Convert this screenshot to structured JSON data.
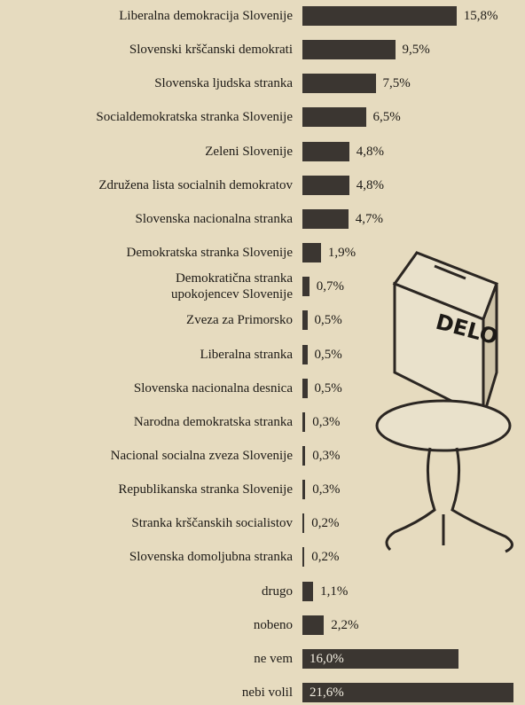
{
  "chart_data": {
    "type": "bar",
    "orientation": "horizontal",
    "annotation": "DELO",
    "color": "#3b3631",
    "categories": [
      "Liberalna demokracija Slovenije",
      "Slovenski krščanski demokrati",
      "Slovenska ljudska stranka",
      "Socialdemokratska stranka Slovenije",
      "Zeleni Slovenije",
      "Združena lista socialnih demokratov",
      "Slovenska nacionalna stranka",
      "Demokratska stranka Slovenije",
      "Demokratična stranka upokojencev Slovenije",
      "Zveza za Primorsko",
      "Liberalna stranka",
      "Slovenska nacionalna desnica",
      "Narodna demokratska stranka",
      "Nacional socialna zveza Slovenije",
      "Republikanska stranka Slovenije",
      "Stranka krščanskih socialistov",
      "Slovenska domoljubna stranka",
      "drugo",
      "nobeno",
      "ne vem",
      "nebi volil"
    ],
    "values": [
      15.8,
      9.5,
      7.5,
      6.5,
      4.8,
      4.8,
      4.7,
      1.9,
      0.7,
      0.5,
      0.5,
      0.5,
      0.3,
      0.3,
      0.3,
      0.2,
      0.2,
      1.1,
      2.2,
      16.0,
      21.6
    ],
    "value_labels": [
      "15,8%",
      "9,5%",
      "7,5%",
      "6,5%",
      "4,8%",
      "4,8%",
      "4,7%",
      "1,9%",
      "0,7%",
      "0,5%",
      "0,5%",
      "0,5%",
      "0,3%",
      "0,3%",
      "0,3%",
      "0,2%",
      "0,2%",
      "1,1%",
      "2,2%",
      "16,0%",
      "21,6%"
    ]
  }
}
